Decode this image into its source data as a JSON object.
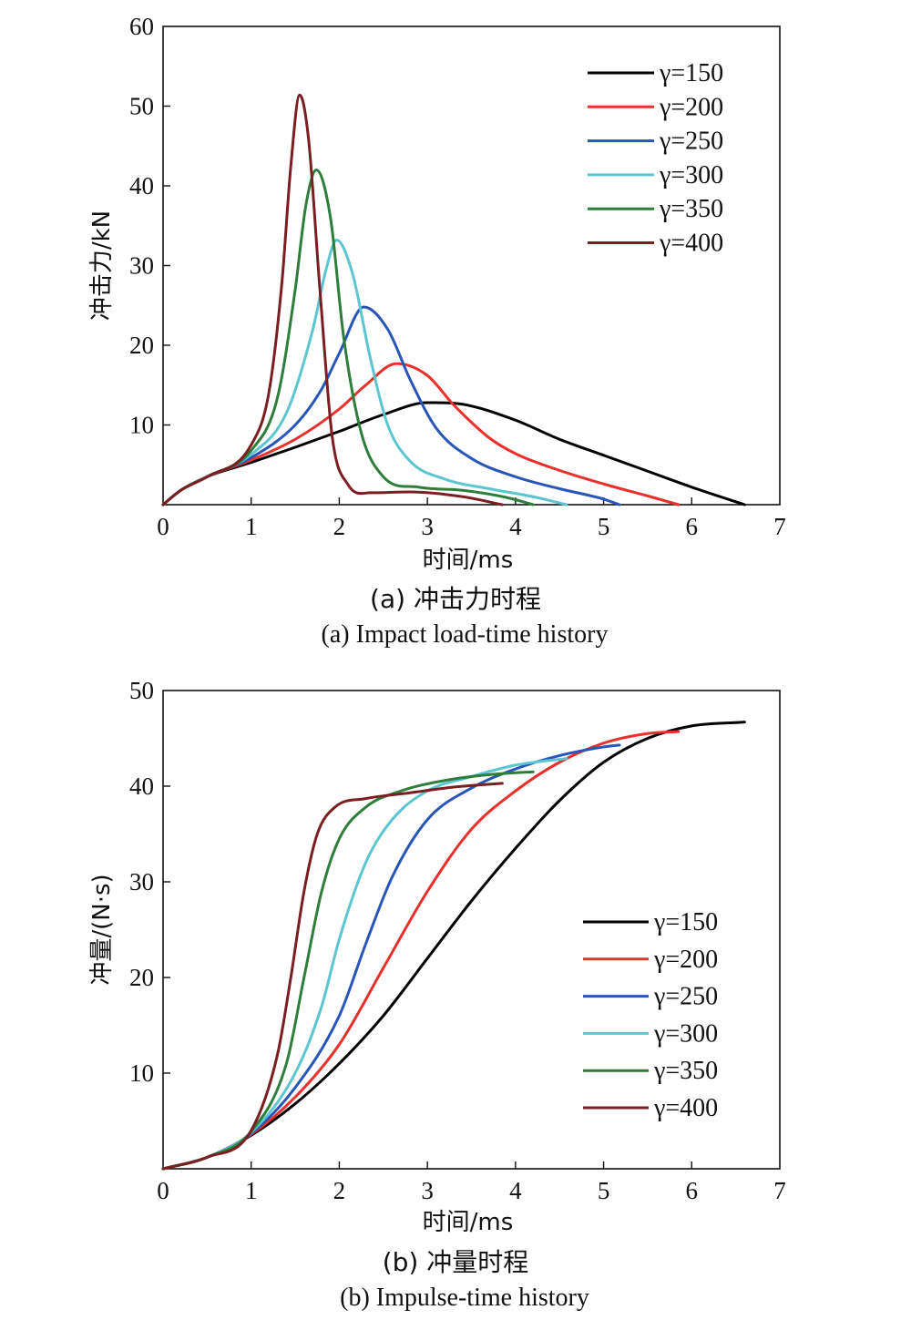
{
  "chart_data": [
    {
      "type": "line",
      "xlabel": "时间/ms",
      "ylabel": "冲击力/kN",
      "xlim": [
        0,
        7
      ],
      "ylim": [
        0,
        60
      ],
      "xticks": [
        "0",
        "1",
        "2",
        "3",
        "4",
        "5",
        "6",
        "7"
      ],
      "yticks": [
        "10",
        "20",
        "30",
        "40",
        "50",
        "60"
      ],
      "caption_cn": "(a) 冲击力时程",
      "caption_en": "(a) Impact load-time history",
      "legend_position": "top-right",
      "grid": false,
      "series": [
        {
          "name": "γ=150",
          "color": "#000000",
          "x": [
            0,
            0.2,
            0.5,
            1.0,
            1.5,
            2.0,
            2.5,
            3.0,
            3.4,
            4.0,
            4.5,
            5.0,
            5.5,
            6.0,
            6.6
          ],
          "y": [
            0,
            1.8,
            3.5,
            5.3,
            7.2,
            9.2,
            11.3,
            12.8,
            12.6,
            10.6,
            8.2,
            6.2,
            4.2,
            2.2,
            0
          ]
        },
        {
          "name": "γ=200",
          "color": "#e8302c",
          "x": [
            0,
            0.2,
            0.5,
            1.0,
            1.5,
            2.0,
            2.3,
            2.65,
            3.0,
            3.3,
            3.7,
            4.0,
            4.5,
            5.0,
            5.5,
            5.85
          ],
          "y": [
            0,
            1.8,
            3.5,
            5.6,
            8.2,
            12.0,
            15.0,
            17.7,
            16.2,
            12.5,
            8.4,
            6.4,
            4.3,
            2.6,
            1.1,
            0
          ]
        },
        {
          "name": "γ=250",
          "color": "#2855b8",
          "x": [
            0,
            0.2,
            0.5,
            1.0,
            1.5,
            1.8,
            2.0,
            2.28,
            2.55,
            2.8,
            3.1,
            3.5,
            4.0,
            4.5,
            5.0,
            5.18
          ],
          "y": [
            0,
            1.8,
            3.5,
            5.9,
            10.0,
            14.5,
            19.0,
            24.8,
            22.0,
            15.8,
            9.6,
            5.8,
            3.5,
            2.0,
            0.7,
            0
          ]
        },
        {
          "name": "γ=300",
          "color": "#5cc6d0",
          "x": [
            0,
            0.2,
            0.5,
            1.0,
            1.4,
            1.7,
            1.85,
            1.97,
            2.15,
            2.35,
            2.55,
            2.8,
            3.2,
            3.7,
            4.2,
            4.58
          ],
          "y": [
            0,
            1.8,
            3.5,
            6.3,
            11.5,
            22.0,
            29.5,
            33.2,
            29.0,
            18.5,
            10.0,
            5.5,
            3.2,
            2.0,
            1.0,
            0
          ]
        },
        {
          "name": "γ=350",
          "color": "#2f7d3a",
          "x": [
            0,
            0.2,
            0.5,
            1.0,
            1.3,
            1.5,
            1.62,
            1.74,
            1.9,
            2.05,
            2.25,
            2.5,
            2.9,
            3.4,
            3.9,
            4.2
          ],
          "y": [
            0,
            1.8,
            3.5,
            6.8,
            13.5,
            27.0,
            37.5,
            42.0,
            36.0,
            21.0,
            9.0,
            3.5,
            2.2,
            1.8,
            0.9,
            0
          ]
        },
        {
          "name": "γ=400",
          "color": "#7a1e22",
          "x": [
            0,
            0.2,
            0.5,
            1.0,
            1.2,
            1.35,
            1.45,
            1.55,
            1.65,
            1.78,
            1.92,
            2.1,
            2.35,
            2.8,
            3.4,
            3.85
          ],
          "y": [
            0,
            1.8,
            3.5,
            7.5,
            14.0,
            28.0,
            42.5,
            51.4,
            46.0,
            27.0,
            8.5,
            2.5,
            1.5,
            1.6,
            1.0,
            0
          ]
        }
      ]
    },
    {
      "type": "line",
      "xlabel": "时间/ms",
      "ylabel": "冲量/(N·s)",
      "xlim": [
        0,
        7
      ],
      "ylim": [
        0,
        50
      ],
      "xticks": [
        "0",
        "1",
        "2",
        "3",
        "4",
        "5",
        "6",
        "7"
      ],
      "yticks": [
        "10",
        "20",
        "30",
        "40",
        "50"
      ],
      "caption_cn": "(b) 冲量时程",
      "caption_en": "(b) Impulse-time history",
      "legend_position": "lower-right",
      "grid": false,
      "series": [
        {
          "name": "γ=150",
          "color": "#000000",
          "x": [
            0,
            0.5,
            1.0,
            1.5,
            2.0,
            2.5,
            3.0,
            3.5,
            4.0,
            4.5,
            5.0,
            5.5,
            6.0,
            6.6
          ],
          "y": [
            0,
            1.2,
            3.5,
            6.8,
            11.0,
            16.0,
            22.0,
            28.0,
            33.5,
            38.5,
            42.5,
            45.0,
            46.3,
            46.7
          ]
        },
        {
          "name": "γ=200",
          "color": "#e8302c",
          "x": [
            0,
            0.5,
            1.0,
            1.5,
            2.0,
            2.5,
            3.0,
            3.5,
            4.0,
            4.5,
            5.0,
            5.5,
            5.85
          ],
          "y": [
            0,
            1.2,
            3.6,
            7.5,
            13.0,
            21.0,
            29.0,
            35.5,
            39.5,
            42.5,
            44.5,
            45.5,
            45.7
          ]
        },
        {
          "name": "γ=250",
          "color": "#2855b8",
          "x": [
            0,
            0.5,
            1.0,
            1.5,
            2.0,
            2.3,
            2.6,
            3.0,
            3.5,
            4.0,
            4.5,
            5.0,
            5.18
          ],
          "y": [
            0,
            1.2,
            3.7,
            8.5,
            16.0,
            23.5,
            30.5,
            36.5,
            39.8,
            41.8,
            43.2,
            44.1,
            44.3
          ]
        },
        {
          "name": "γ=300",
          "color": "#5cc6d0",
          "x": [
            0,
            0.5,
            1.0,
            1.5,
            1.8,
            2.0,
            2.3,
            2.6,
            3.0,
            3.5,
            4.0,
            4.58
          ],
          "y": [
            0,
            1.2,
            3.8,
            10.0,
            17.0,
            24.0,
            32.0,
            36.5,
            39.5,
            41.0,
            42.2,
            42.9
          ]
        },
        {
          "name": "γ=350",
          "color": "#2f7d3a",
          "x": [
            0,
            0.5,
            1.0,
            1.4,
            1.6,
            1.8,
            2.0,
            2.3,
            2.7,
            3.2,
            3.7,
            4.2
          ],
          "y": [
            0,
            1.2,
            3.9,
            11.0,
            20.0,
            29.0,
            34.5,
            37.8,
            39.5,
            40.6,
            41.2,
            41.5
          ]
        },
        {
          "name": "γ=400",
          "color": "#7a1e22",
          "x": [
            0,
            0.5,
            1.0,
            1.3,
            1.45,
            1.6,
            1.75,
            1.95,
            2.3,
            2.8,
            3.3,
            3.85
          ],
          "y": [
            0,
            1.2,
            4.0,
            12.0,
            20.0,
            29.0,
            35.0,
            37.8,
            38.7,
            39.3,
            39.9,
            40.3
          ]
        }
      ]
    }
  ]
}
